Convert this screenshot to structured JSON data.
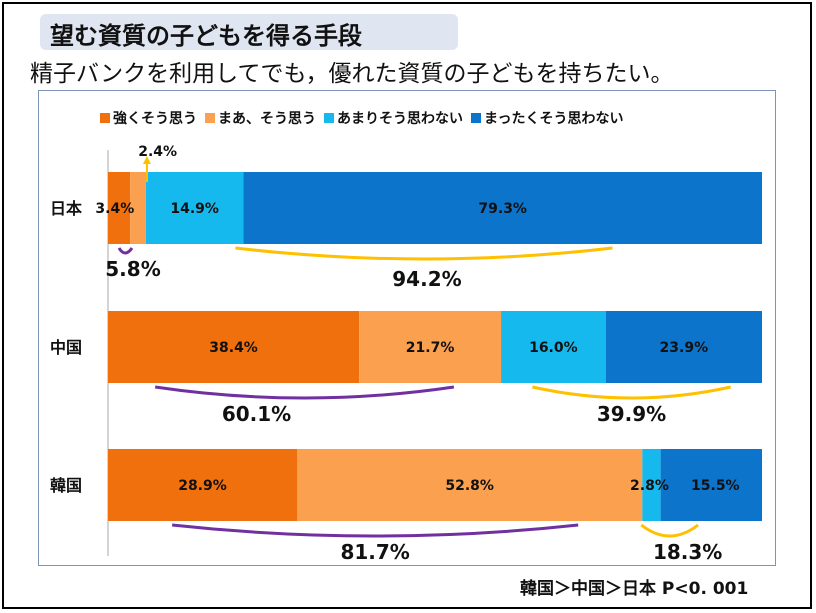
{
  "title": "望む資質の子どもを得る手段",
  "subtitle": "精子バンクを利用してでも，優れた資質の子どもを持ちたい。",
  "footer": "韓国＞中国＞日本  P<0. 001",
  "chart_data": {
    "type": "bar",
    "orientation": "horizontal",
    "stacked": "percent",
    "categories": [
      "日本",
      "中国",
      "韓国"
    ],
    "series": [
      {
        "name": "強くそう思う",
        "color": "#f0700e",
        "values": [
          3.4,
          38.4,
          28.9
        ],
        "labels": [
          "3.4%",
          "38.4%",
          "28.9%"
        ]
      },
      {
        "name": "まあ、そう思う",
        "color": "#fba04e",
        "values": [
          2.4,
          21.7,
          52.8
        ],
        "labels": [
          "2.4%",
          "21.7%",
          "52.8%"
        ]
      },
      {
        "name": "あまりそう思わない",
        "color": "#16b9ee",
        "values": [
          14.9,
          16.0,
          2.8
        ],
        "labels": [
          "14.9%",
          "16.0%",
          "2.8%"
        ]
      },
      {
        "name": "まったくそう思わない",
        "color": "#0c74cb",
        "values": [
          79.3,
          23.9,
          15.5
        ],
        "labels": [
          "79.3%",
          "23.9%",
          "15.5%"
        ]
      }
    ],
    "xlim": [
      0,
      100
    ],
    "legend_position": "top",
    "annotations": [
      {
        "category": "日本",
        "group": "agree",
        "text": "5.8%",
        "color": "#7030a0"
      },
      {
        "category": "日本",
        "group": "disagree",
        "text": "94.2%",
        "color": "#ffc000"
      },
      {
        "category": "中国",
        "group": "agree",
        "text": "60.1%",
        "color": "#7030a0"
      },
      {
        "category": "中国",
        "group": "disagree",
        "text": "39.9%",
        "color": "#ffc000"
      },
      {
        "category": "韓国",
        "group": "agree",
        "text": "81.7%",
        "color": "#7030a0"
      },
      {
        "category": "韓国",
        "group": "disagree",
        "text": "18.3%",
        "color": "#ffc000"
      }
    ]
  }
}
